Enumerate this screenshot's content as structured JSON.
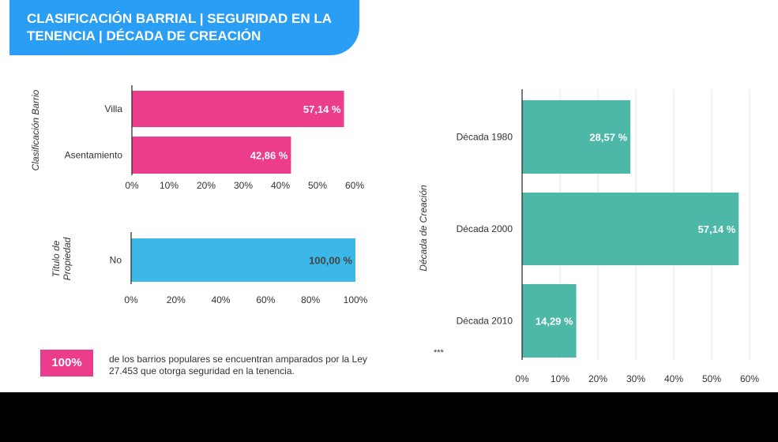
{
  "header": {
    "title": "CLASIFICACIÓN BARRIAL | SEGURIDAD EN LA TENENCIA | DÉCADA DE CREACIÓN"
  },
  "footer": {
    "badge": "100%",
    "text": "de los barrios populares se encuentran amparados por la Ley 27.453 que otorga seguridad en la tenencia.",
    "note": "***"
  },
  "colors": {
    "header": "#2a9df4",
    "pink": "#ec3d8d",
    "cyan": "#3bb8e8",
    "teal": "#4db8a8"
  },
  "chart_data": [
    {
      "type": "bar",
      "orientation": "horizontal",
      "ylabel": "Clasificación Barrio",
      "categories": [
        "Villa",
        "Asentamiento"
      ],
      "values": [
        57.14,
        42.86
      ],
      "data_labels": [
        "57,14 %",
        "42,86 %"
      ],
      "xlim": [
        0,
        60
      ],
      "xticks": [
        "0%",
        "10%",
        "20%",
        "30%",
        "40%",
        "50%",
        "60%"
      ],
      "color": "#ec3d8d",
      "grid": false
    },
    {
      "type": "bar",
      "orientation": "horizontal",
      "ylabel": "Título de Propiedad",
      "categories": [
        "No"
      ],
      "values": [
        100
      ],
      "data_labels": [
        "100,00 %"
      ],
      "xlim": [
        0,
        100
      ],
      "xticks": [
        "0%",
        "20%",
        "40%",
        "60%",
        "80%",
        "100%"
      ],
      "color": "#3bb8e8",
      "grid": false
    },
    {
      "type": "bar",
      "orientation": "horizontal",
      "ylabel": "Década de Creación",
      "categories": [
        "Década 1980",
        "Década 2000",
        "Década 2010"
      ],
      "values": [
        28.57,
        57.14,
        14.29
      ],
      "data_labels": [
        "28,57 %",
        "57,14 %",
        "14,29 %"
      ],
      "xlim": [
        0,
        60
      ],
      "xticks": [
        "0%",
        "10%",
        "20%",
        "30%",
        "40%",
        "50%",
        "60%"
      ],
      "color": "#4db8a8",
      "grid": true
    }
  ]
}
